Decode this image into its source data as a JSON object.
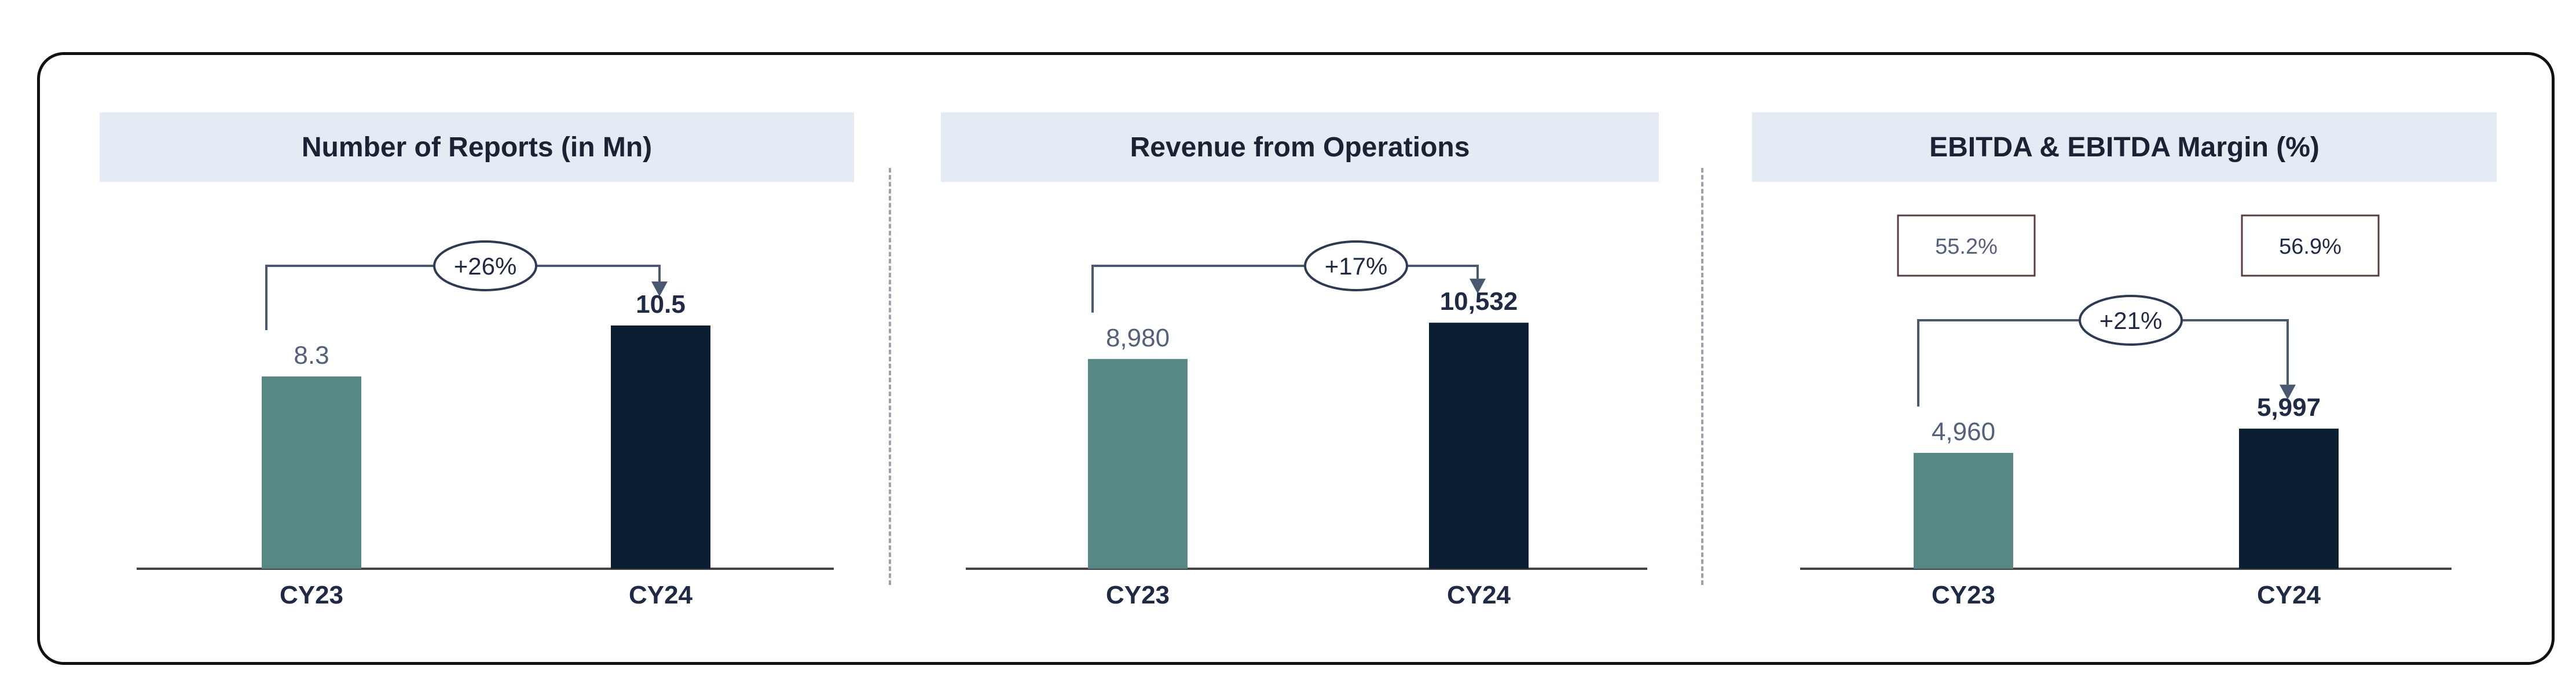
{
  "colors": {
    "cy23": "#578886",
    "cy24": "#0b1e32",
    "text": "#1f2a44",
    "muted": "#55607a",
    "band": "#e4ebf5",
    "axis": "#444444"
  },
  "chart_data": [
    {
      "type": "bar",
      "title": "Number of Reports (in Mn)",
      "categories": [
        "CY23",
        "CY24"
      ],
      "values": [
        8.3,
        10.5
      ],
      "value_labels": [
        "8.3",
        "10.5"
      ],
      "growth_label": "+26%",
      "ylim": [
        0,
        12
      ]
    },
    {
      "type": "bar",
      "title": "Revenue from Operations",
      "categories": [
        "CY23",
        "CY24"
      ],
      "values": [
        8980,
        10532
      ],
      "value_labels": [
        "8,980",
        "10,532"
      ],
      "growth_label": "+17%",
      "ylim": [
        0,
        11900
      ]
    },
    {
      "type": "bar",
      "title": "EBITDA & EBITDA Margin (%)",
      "categories": [
        "CY23",
        "CY24"
      ],
      "values": [
        4960,
        5997
      ],
      "value_labels": [
        "4,960",
        "5,997"
      ],
      "growth_label": "+21%",
      "margins": [
        "55.2%",
        "56.9%"
      ],
      "ylim": [
        0,
        11900
      ]
    }
  ]
}
